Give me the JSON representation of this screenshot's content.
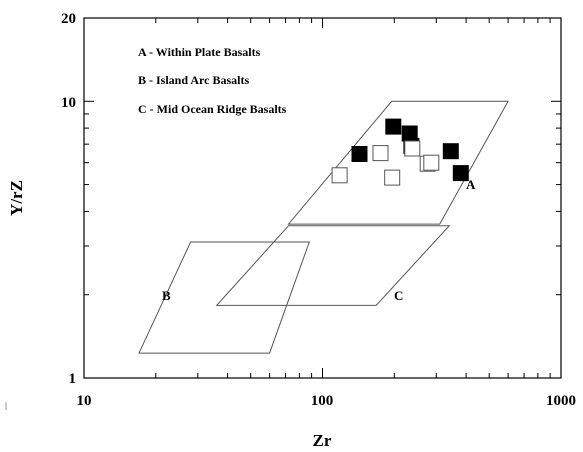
{
  "chart_data": {
    "type": "scatter",
    "title": "",
    "xlabel": "Zr",
    "ylabel": "Y/rZ",
    "xscale": "log",
    "yscale": "log",
    "xlim": [
      10,
      1000
    ],
    "ylim": [
      1,
      20
    ],
    "x_ticks": [
      "10",
      "100",
      "1000"
    ],
    "y_ticks": [
      "1",
      "10",
      "20"
    ],
    "grid": false,
    "legend": [
      "A - Within Plate Basalts",
      "B - Island Arc Basalts",
      "C - Mid Ocean Ridge Basalts"
    ],
    "fields": [
      {
        "label": "A",
        "polygon": [
          [
            72,
            3.6
          ],
          [
            310,
            3.6
          ],
          [
            600,
            10
          ],
          [
            195,
            10
          ]
        ]
      },
      {
        "label": "B",
        "polygon": [
          [
            17,
            1.23
          ],
          [
            60,
            1.23
          ],
          [
            88,
            3.1
          ],
          [
            28,
            3.1
          ]
        ]
      },
      {
        "label": "C",
        "polygon": [
          [
            36,
            1.83
          ],
          [
            168,
            1.83
          ],
          [
            340,
            3.55
          ],
          [
            72,
            3.55
          ]
        ]
      }
    ],
    "series": [
      {
        "marker": "filled-square",
        "x": [
          143,
          198,
          232,
          236,
          345,
          380
        ],
        "y": [
          6.45,
          8.1,
          7.65,
          6.9,
          6.6,
          5.5
        ]
      },
      {
        "marker": "open-square",
        "x": [
          118,
          175,
          196,
          238,
          276,
          286
        ],
        "y": [
          5.4,
          6.5,
          5.3,
          6.75,
          5.95,
          6.0
        ]
      }
    ]
  }
}
